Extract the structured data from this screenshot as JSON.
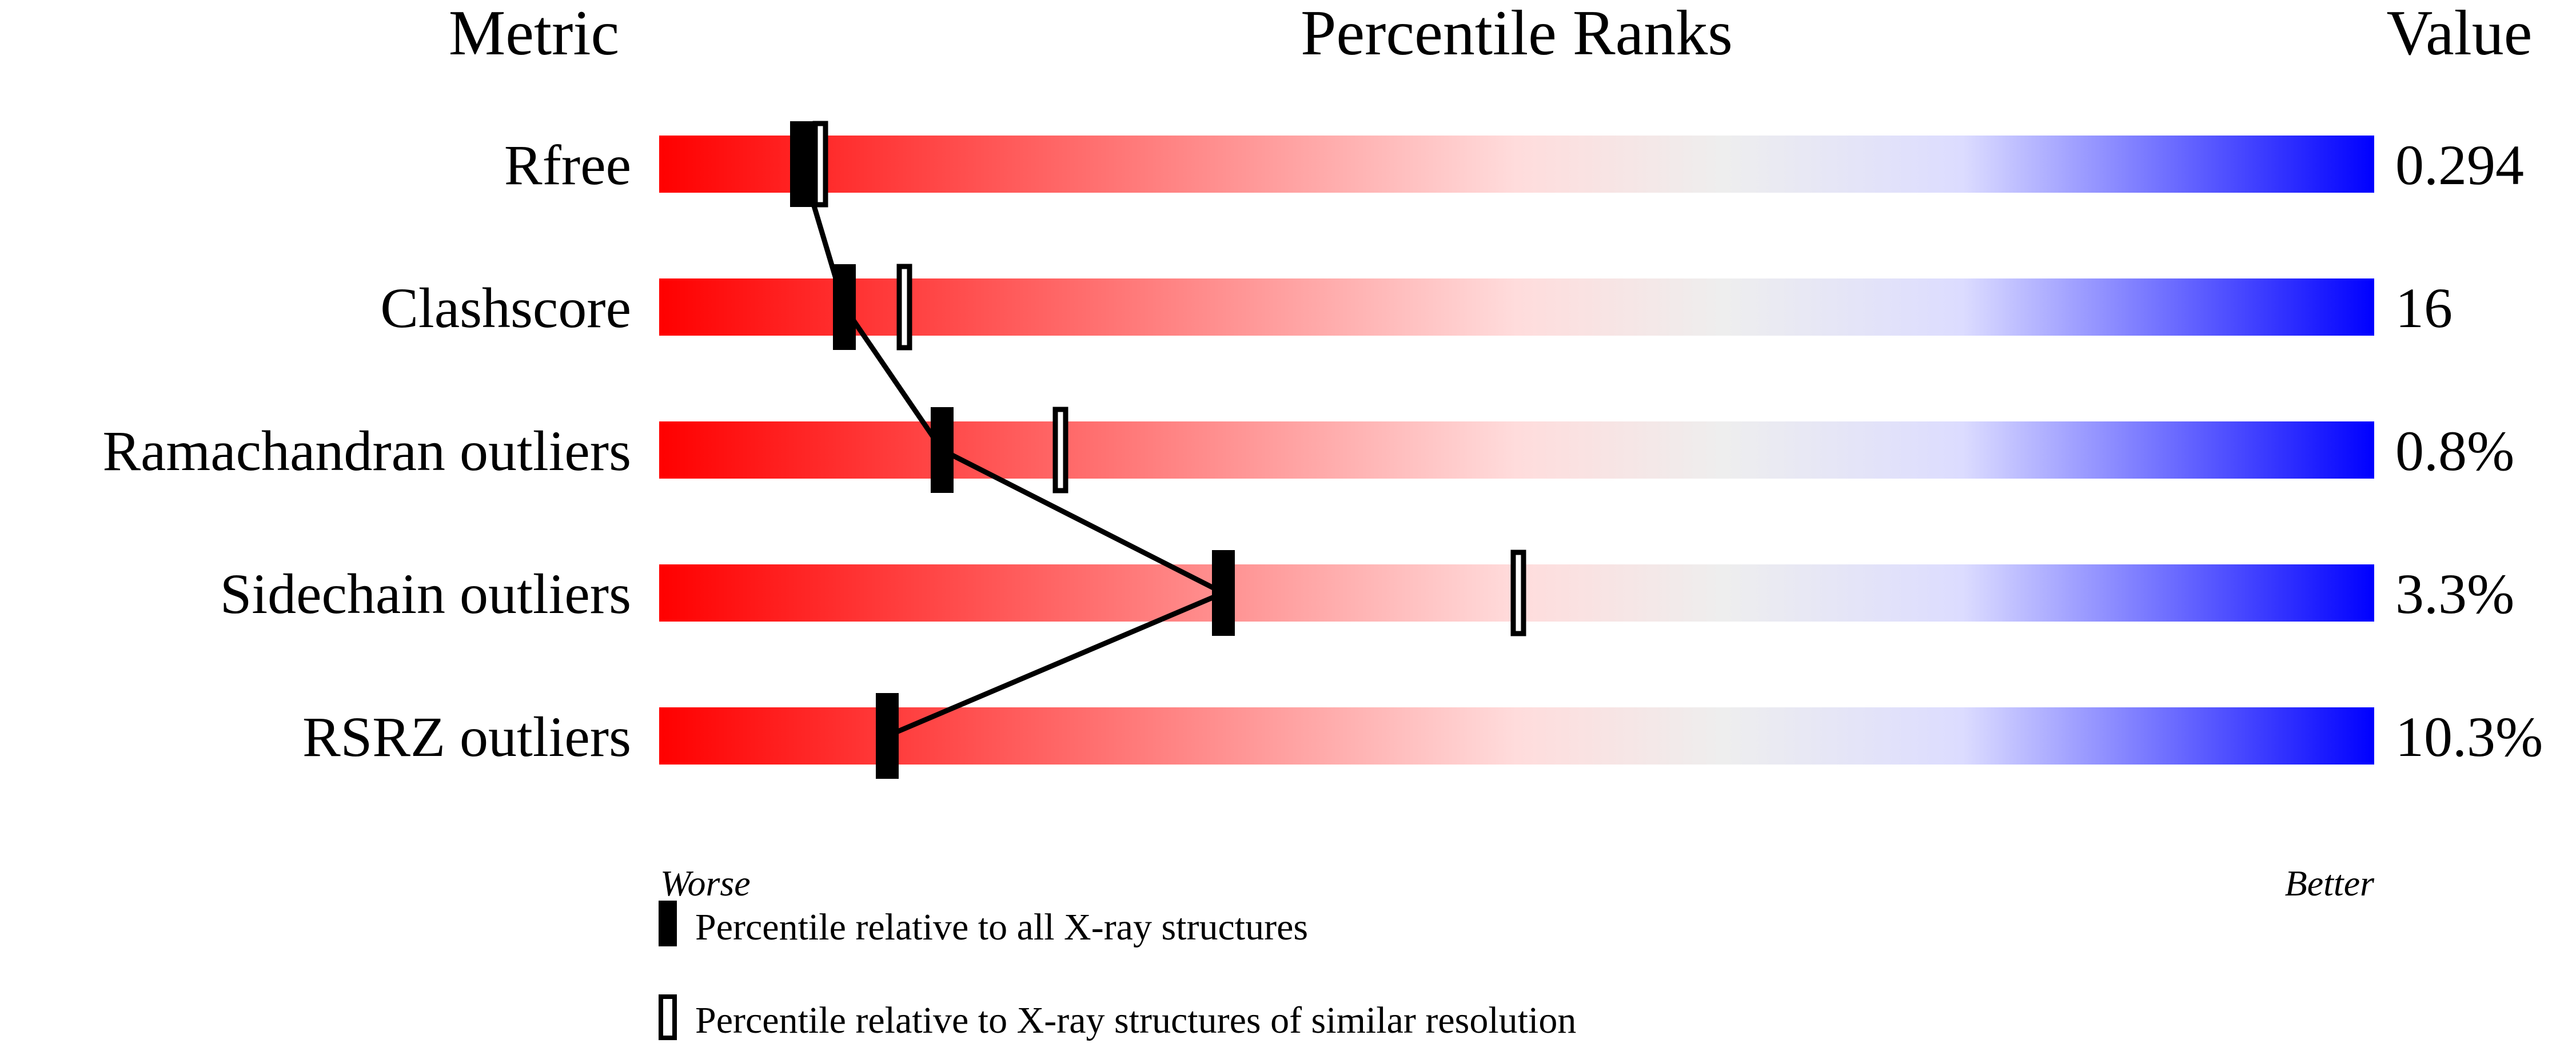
{
  "chart_data": {
    "type": "percentile-slider",
    "headers": {
      "metric": "Metric",
      "ranks": "Percentile Ranks",
      "value": "Value"
    },
    "axis": {
      "worse_label": "Worse",
      "better_label": "Better",
      "range": [
        0,
        100
      ]
    },
    "rows": [
      {
        "metric": "Rfree",
        "value": "0.294",
        "percentile_all": 8.3,
        "percentile_similar": 9.4
      },
      {
        "metric": "Clashscore",
        "value": "16",
        "percentile_all": 10.8,
        "percentile_similar": 14.3
      },
      {
        "metric": "Ramachandran outliers",
        "value": "0.8%",
        "percentile_all": 16.5,
        "percentile_similar": 23.4
      },
      {
        "metric": "Sidechain outliers",
        "value": "3.3%",
        "percentile_all": 32.9,
        "percentile_similar": 50.1
      },
      {
        "metric": "RSRZ outliers",
        "value": "10.3%",
        "percentile_all": 13.3
      }
    ],
    "legend": [
      {
        "marker": "filled",
        "label": "Percentile relative to all X-ray structures"
      },
      {
        "marker": "open",
        "label": "Percentile relative to X-ray structures of similar resolution"
      }
    ],
    "colors": {
      "worse": "#ff0000",
      "middle": "#eeeeee",
      "better": "#0000ff",
      "marker": "#000000"
    }
  }
}
